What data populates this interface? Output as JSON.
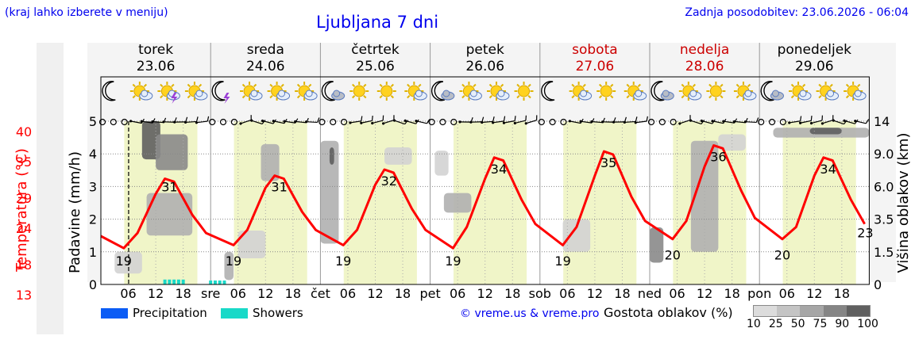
{
  "header": {
    "hint": "(kraj lahko izberete v meniju)",
    "title": "Ljubljana 7 dni",
    "updated": "Zadnja posodobitev: 23.06.2026 - 06:04"
  },
  "days": [
    {
      "name": "torek",
      "date": "23.06",
      "weekend": false,
      "abbr": ""
    },
    {
      "name": "sreda",
      "date": "24.06",
      "weekend": false,
      "abbr": "sre"
    },
    {
      "name": "četrtek",
      "date": "25.06",
      "weekend": false,
      "abbr": "čet"
    },
    {
      "name": "petek",
      "date": "26.06",
      "weekend": false,
      "abbr": "pet"
    },
    {
      "name": "sobota",
      "date": "27.06",
      "weekend": true,
      "abbr": "sob"
    },
    {
      "name": "nedelja",
      "date": "28.06",
      "weekend": true,
      "abbr": "ned"
    },
    {
      "name": "ponedeljek",
      "date": "29.06",
      "weekend": false,
      "abbr": "pon"
    }
  ],
  "hour_ticks": [
    "06",
    "12",
    "18"
  ],
  "weather_icons": [
    [
      "moon",
      "sun-cloud",
      "sun-cloud-thunder",
      "sun-cloud"
    ],
    [
      "moon-thunder",
      "sun-cloud",
      "sun-cloud",
      "sun-cloud"
    ],
    [
      "moon-cloud",
      "sun",
      "sun",
      "sun-cloud"
    ],
    [
      "moon-cloud",
      "sun-cloud",
      "sun-cloud",
      "sun"
    ],
    [
      "moon",
      "sun-cloud",
      "sun",
      "sun-cloud"
    ],
    [
      "moon-cloud",
      "sun-cloud",
      "sun",
      "sun-cloud"
    ],
    [
      "moon-cloud",
      "sun-cloud",
      "sun-cloud",
      "sun-cloud"
    ]
  ],
  "colors": {
    "temperature": "#ff0000",
    "daylight": "#f0f5c8",
    "precipitation": "#0b5cf5",
    "showers": "#19d9c8",
    "weekend_text": "#cc0000",
    "link": "#0000ee"
  },
  "legend": {
    "precipitation": "Precipitation",
    "showers": "Showers",
    "credit": "© vreme.us & vreme.pro",
    "cloud_density": "Gostota oblakov (%)",
    "cloud_scale": [
      "10",
      "25",
      "50",
      "75",
      "90",
      "100"
    ],
    "cloud_colors": [
      "#dcdcdc",
      "#c4c4c4",
      "#a6a6a6",
      "#858585",
      "#606060"
    ]
  },
  "chart_data": {
    "type": "line",
    "title": "Ljubljana 7 dni",
    "axes": {
      "temperature": {
        "label": "Temperatura (°C)",
        "ticks": [
          "13",
          "18",
          "24",
          "29",
          "35",
          "40"
        ],
        "range": [
          13,
          40
        ]
      },
      "precipitation": {
        "label": "Padavine (mm/h)",
        "ticks": [
          "0",
          "1",
          "2",
          "3",
          "4",
          "5"
        ],
        "range": [
          0,
          5
        ]
      },
      "cloud_height": {
        "label": "Višina oblakov (km)",
        "ticks": [
          "0",
          "1.5",
          "3.5",
          "6.0",
          "9.0",
          "14"
        ],
        "range": [
          0,
          14
        ]
      }
    },
    "temperature_series": {
      "name": "Temperatura",
      "unit": "°C",
      "hours": [
        0,
        5,
        8,
        12,
        14,
        16,
        20,
        23,
        29,
        32,
        36,
        38,
        40,
        44,
        47,
        53,
        56,
        60,
        62,
        64,
        68,
        71,
        77,
        80,
        84,
        86,
        88,
        92,
        95,
        101,
        104,
        108,
        110,
        112,
        116,
        119,
        125,
        128,
        132,
        134,
        136,
        140,
        143,
        149,
        152,
        156,
        158,
        160,
        164,
        167
      ],
      "values": [
        21,
        19,
        21.5,
        28,
        30.5,
        30,
        24.5,
        21.5,
        19.5,
        22,
        29,
        31,
        30.5,
        25,
        22,
        19.5,
        22,
        29.5,
        32,
        31.5,
        25.5,
        22,
        19,
        22.5,
        30.5,
        34,
        33.5,
        27,
        23,
        19.5,
        22.5,
        31,
        35,
        34.5,
        27.5,
        23.5,
        20.5,
        23.5,
        32.5,
        36,
        35.5,
        28.5,
        24,
        20.5,
        22.5,
        31,
        34,
        33.5,
        27,
        23
      ]
    },
    "temperature_labels": [
      {
        "hour": 5,
        "value": "19",
        "kind": "min"
      },
      {
        "hour": 15,
        "value": "31",
        "kind": "max"
      },
      {
        "hour": 29,
        "value": "19",
        "kind": "min"
      },
      {
        "hour": 39,
        "value": "31",
        "kind": "max"
      },
      {
        "hour": 53,
        "value": "19",
        "kind": "min"
      },
      {
        "hour": 63,
        "value": "32",
        "kind": "max"
      },
      {
        "hour": 77,
        "value": "19",
        "kind": "min"
      },
      {
        "hour": 87,
        "value": "34",
        "kind": "max"
      },
      {
        "hour": 101,
        "value": "19",
        "kind": "min"
      },
      {
        "hour": 111,
        "value": "35",
        "kind": "max"
      },
      {
        "hour": 125,
        "value": "20",
        "kind": "min"
      },
      {
        "hour": 135,
        "value": "36",
        "kind": "max"
      },
      {
        "hour": 149,
        "value": "20",
        "kind": "min"
      },
      {
        "hour": 159,
        "value": "34",
        "kind": "max"
      },
      {
        "hour": 168,
        "value": "23",
        "kind": "end"
      }
    ],
    "showers_mm_h": [
      {
        "hour": 14,
        "value": 0.15
      },
      {
        "hour": 15,
        "value": 0.15
      },
      {
        "hour": 16,
        "value": 0.15
      },
      {
        "hour": 17,
        "value": 0.15
      },
      {
        "hour": 18,
        "value": 0.15
      },
      {
        "hour": 24,
        "value": 0.12
      },
      {
        "hour": 25,
        "value": 0.12
      },
      {
        "hour": 26,
        "value": 0.12
      },
      {
        "hour": 27,
        "value": 0.12
      }
    ],
    "clouds": [
      {
        "day": 0,
        "h0": 9,
        "h1": 13,
        "km0": 8.5,
        "km1": 14,
        "density": 90
      },
      {
        "day": 0,
        "h0": 12,
        "h1": 19,
        "km0": 7.5,
        "km1": 12,
        "density": 75
      },
      {
        "day": 0,
        "h0": 10,
        "h1": 20,
        "km0": 2.5,
        "km1": 5.5,
        "density": 50
      },
      {
        "day": 0,
        "h0": 3,
        "h1": 9,
        "km0": 0.5,
        "km1": 1.5,
        "density": 25
      },
      {
        "day": 1,
        "h0": 6,
        "h1": 12,
        "km0": 1.2,
        "km1": 2.8,
        "density": 25
      },
      {
        "day": 1,
        "h0": 11,
        "h1": 15,
        "km0": 6.5,
        "km1": 10.5,
        "density": 50
      },
      {
        "day": 1,
        "h0": 3,
        "h1": 5,
        "km0": 0.2,
        "km1": 1.5,
        "density": 50
      },
      {
        "day": 2,
        "h0": 0,
        "h1": 4,
        "km0": 2,
        "km1": 11,
        "density": 50
      },
      {
        "day": 2,
        "h0": 2,
        "h1": 3,
        "km0": 8,
        "km1": 10,
        "density": 90
      },
      {
        "day": 2,
        "h0": 14,
        "h1": 20,
        "km0": 8,
        "km1": 10,
        "density": 25
      },
      {
        "day": 3,
        "h0": 1,
        "h1": 4,
        "km0": 7,
        "km1": 9.5,
        "density": 25
      },
      {
        "day": 3,
        "h0": 3,
        "h1": 9,
        "km0": 4,
        "km1": 5.5,
        "density": 50
      },
      {
        "day": 4,
        "h0": 5,
        "h1": 11,
        "km0": 1.5,
        "km1": 3.5,
        "density": 25
      },
      {
        "day": 5,
        "h0": 0,
        "h1": 3,
        "km0": 1,
        "km1": 3,
        "density": 75
      },
      {
        "day": 5,
        "h0": 9,
        "h1": 15,
        "km0": 1.5,
        "km1": 11,
        "density": 50
      },
      {
        "day": 5,
        "h0": 15,
        "h1": 21,
        "km0": 9.5,
        "km1": 12,
        "density": 25
      },
      {
        "day": 6,
        "h0": 3,
        "h1": 24,
        "km0": 11.5,
        "km1": 13,
        "density": 50
      },
      {
        "day": 6,
        "h0": 11,
        "h1": 18,
        "km0": 12,
        "km1": 13,
        "density": 90
      }
    ]
  }
}
